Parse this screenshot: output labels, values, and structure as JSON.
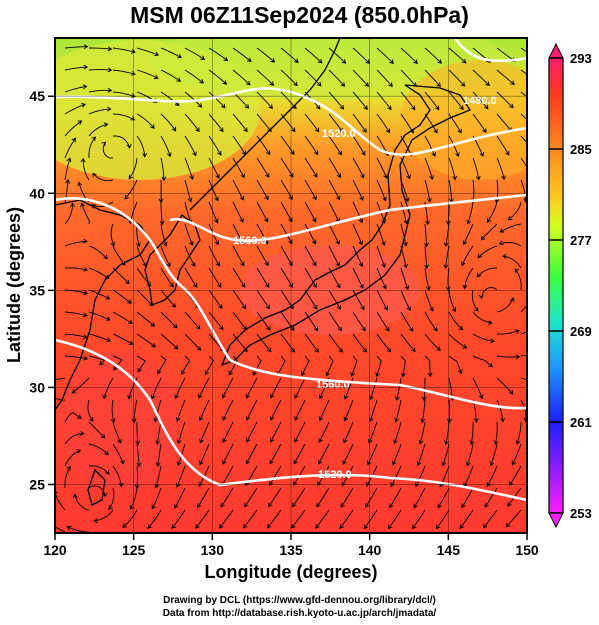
{
  "title": "MSM 06Z11Sep2024 (850.0hPa)",
  "xaxis": {
    "label": "Longitude (degrees)",
    "ticks": [
      "120",
      "125",
      "130",
      "135",
      "140",
      "145",
      "150"
    ]
  },
  "yaxis": {
    "label": "Latitude  (degrees)",
    "ticks": [
      "25",
      "30",
      "35",
      "40",
      "45"
    ]
  },
  "colorbar": {
    "ticks": [
      "293",
      "285",
      "277",
      "269",
      "261",
      "253"
    ],
    "colors": [
      "#ff1e6e",
      "#ff4a1e",
      "#ff8a1e",
      "#ffc51e",
      "#d2ff1e",
      "#6eff1e",
      "#1eff78",
      "#1ee6e6",
      "#1e8cff",
      "#1e1eff",
      "#8c1eff",
      "#ff1eff"
    ]
  },
  "contour_labels": [
    "1480.0",
    "1520.0",
    "1560.0",
    "1560.0",
    "1520.0"
  ],
  "credits": {
    "line1": "Drawing by DCL (https://www.gfd-dennou.org/library/dcl/)",
    "line2": "Data from http://database.rish.kyoto-u.ac.jp/arch/jmadata/"
  }
}
